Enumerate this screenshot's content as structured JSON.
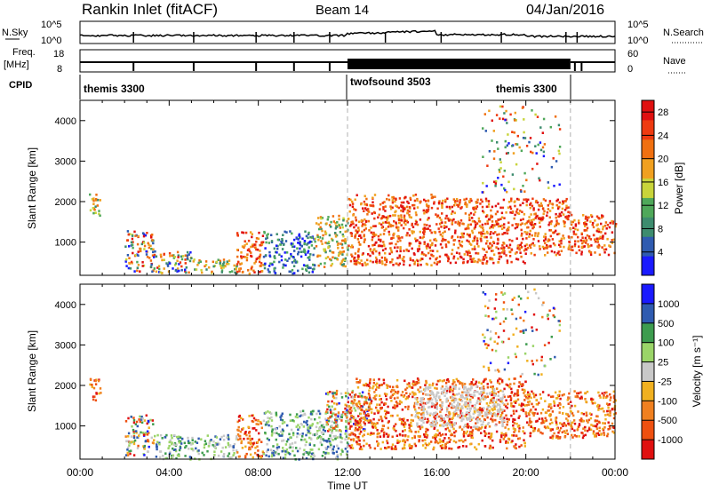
{
  "header": {
    "station": "Rankin Inlet (fitACF)",
    "beam": "Beam 14",
    "date": "04/Jan/2016"
  },
  "summary": {
    "nsky_label": "N.Sky",
    "nsky_ticks": [
      "10^5",
      "10^0"
    ],
    "nsearch_label": "N.Search",
    "nsearch_ticks": [
      "10^5",
      "10^0"
    ],
    "freq_label": "Freq.",
    "freq_unit": "[MHz]",
    "freq_ticks": [
      "18",
      "8"
    ],
    "nave_label": "Nave",
    "nave_ticks": [
      "60",
      "0"
    ],
    "cpid_label": "CPID",
    "cpid_segments": [
      {
        "name": "themis 3300",
        "start_ut": 0,
        "end_ut": 12
      },
      {
        "name": "twofsound 3503",
        "start_ut": 12,
        "end_ut": 22
      },
      {
        "name": "themis 3300",
        "start_ut": 22,
        "end_ut": 24
      }
    ]
  },
  "colors": {
    "power": [
      "#1a1aff",
      "#2f5bb0",
      "#3d8c6e",
      "#4fa85a",
      "#c8d43a",
      "#f0a020",
      "#f07010",
      "#ee3a10",
      "#e01010"
    ],
    "velocity": [
      "#e01010",
      "#ee5010",
      "#f08020",
      "#f0b020",
      "#c8c8c8",
      "#9ad468",
      "#3d9c4e",
      "#2f5bb0",
      "#1a1aff"
    ],
    "axis": "#000000",
    "ut_marker": "#b0b0b0"
  },
  "chart_data": [
    {
      "type": "heatmap",
      "title": "Power",
      "xlabel": "Time UT",
      "ylabel": "Slant Range [km]",
      "x_ticks": [
        "00:00",
        "04:00",
        "08:00",
        "12:00",
        "16:00",
        "20:00",
        "00:00"
      ],
      "xlim_hours": [
        0,
        24
      ],
      "y_ticks": [
        1000,
        2000,
        3000,
        4000
      ],
      "ylim": [
        180,
        4500
      ],
      "colorbar_label": "Power [dB]",
      "colorbar_ticks": [
        4,
        8,
        12,
        16,
        20,
        24,
        28
      ],
      "colorbar_range": [
        0,
        30
      ],
      "ut_markers_hours": [
        12,
        22
      ],
      "regions": [
        {
          "t0": 0.4,
          "t1": 0.9,
          "r0": 1650,
          "r1": 2250,
          "level": "mid"
        },
        {
          "t0": 2.0,
          "t1": 3.3,
          "r0": 300,
          "r1": 1300,
          "level": "mixed"
        },
        {
          "t0": 3.3,
          "t1": 5.0,
          "r0": 250,
          "r1": 800,
          "level": "mixed"
        },
        {
          "t0": 5.0,
          "t1": 7.0,
          "r0": 250,
          "r1": 600,
          "level": "mid"
        },
        {
          "t0": 7.0,
          "t1": 8.2,
          "r0": 250,
          "r1": 1300,
          "level": "high"
        },
        {
          "t0": 8.2,
          "t1": 10.5,
          "r0": 250,
          "r1": 1300,
          "level": "low"
        },
        {
          "t0": 10.5,
          "t1": 12.0,
          "r0": 400,
          "r1": 1700,
          "level": "mid"
        },
        {
          "t0": 12.0,
          "t1": 16.0,
          "r0": 450,
          "r1": 2200,
          "level": "high"
        },
        {
          "t0": 16.0,
          "t1": 20.0,
          "r0": 500,
          "r1": 2100,
          "level": "high"
        },
        {
          "t0": 18.0,
          "t1": 21.5,
          "r0": 2200,
          "r1": 4400,
          "level": "scatter"
        },
        {
          "t0": 20.0,
          "t1": 22.0,
          "r0": 700,
          "r1": 2100,
          "level": "high"
        },
        {
          "t0": 22.0,
          "t1": 24.0,
          "r0": 700,
          "r1": 1700,
          "level": "high"
        }
      ]
    },
    {
      "type": "heatmap",
      "title": "Velocity",
      "xlabel": "Time UT",
      "ylabel": "Slant Range [km]",
      "x_ticks": [
        "00:00",
        "04:00",
        "08:00",
        "12:00",
        "16:00",
        "20:00",
        "00:00"
      ],
      "xlim_hours": [
        0,
        24
      ],
      "y_ticks": [
        1000,
        2000,
        3000,
        4000
      ],
      "ylim": [
        180,
        4500
      ],
      "colorbar_label": "Velocity [m s⁻¹]",
      "colorbar_ticks": [
        "1000",
        "500",
        "100",
        "25",
        "-25",
        "-100",
        "-500",
        "-1000"
      ],
      "ut_markers_hours": [
        12,
        22
      ],
      "regions": [
        {
          "t0": 0.4,
          "t1": 0.9,
          "r0": 1650,
          "r1": 2250,
          "level": "neg"
        },
        {
          "t0": 2.0,
          "t1": 3.3,
          "r0": 300,
          "r1": 1300,
          "level": "mixed"
        },
        {
          "t0": 3.3,
          "t1": 7.0,
          "r0": 200,
          "r1": 800,
          "level": "pos"
        },
        {
          "t0": 7.0,
          "t1": 8.2,
          "r0": 250,
          "r1": 1300,
          "level": "neg"
        },
        {
          "t0": 8.2,
          "t1": 12.0,
          "r0": 200,
          "r1": 1400,
          "level": "pos"
        },
        {
          "t0": 11.0,
          "t1": 13.0,
          "r0": 900,
          "r1": 1900,
          "level": "mixed"
        },
        {
          "t0": 12.0,
          "t1": 20.0,
          "r0": 450,
          "r1": 2200,
          "level": "neg"
        },
        {
          "t0": 15.0,
          "t1": 19.0,
          "r0": 1000,
          "r1": 2000,
          "level": "grey"
        },
        {
          "t0": 18.0,
          "t1": 21.5,
          "r0": 2200,
          "r1": 4400,
          "level": "scatter"
        },
        {
          "t0": 20.0,
          "t1": 24.0,
          "r0": 700,
          "r1": 1900,
          "level": "neg"
        }
      ]
    }
  ]
}
